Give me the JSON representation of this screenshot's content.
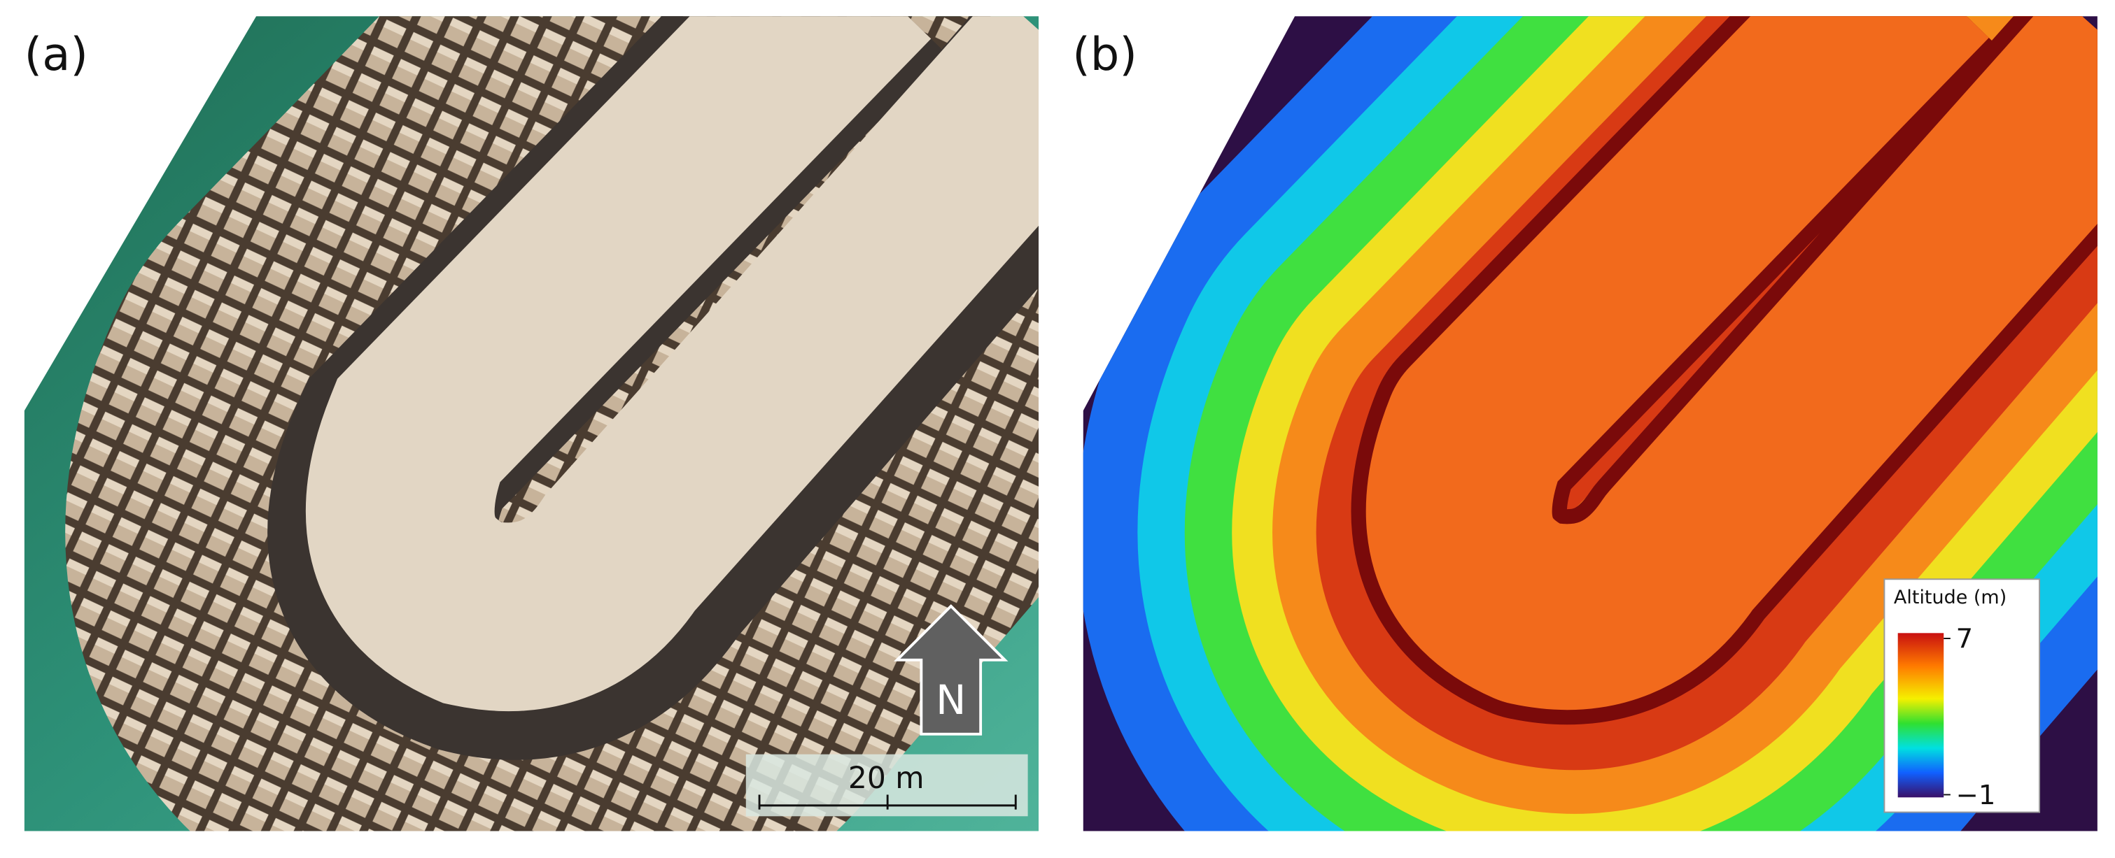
{
  "panels": [
    {
      "label": "(a)",
      "scale_bar": {
        "value": 20,
        "label": "20 m"
      },
      "north_arrow": "N"
    },
    {
      "label": "(b)",
      "colorbar": {
        "title": "Altitude (m)",
        "ticks": [
          7,
          {
            "value": -1,
            "label": "−1"
          }
        ]
      }
    }
  ]
}
